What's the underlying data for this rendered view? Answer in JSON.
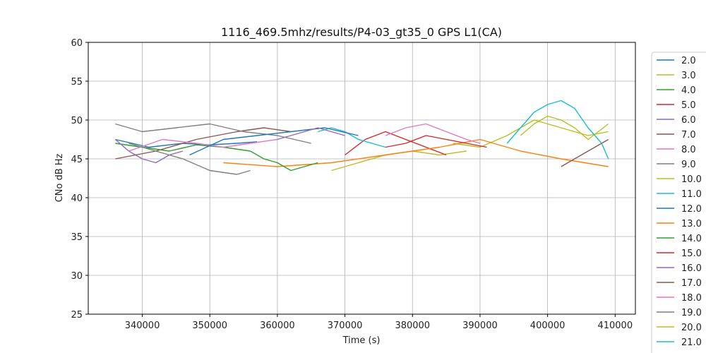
{
  "chart_data": {
    "type": "line",
    "title": "1116_469.5mhz/results/P4-03_gt35_0 GPS L1(CA)",
    "xlabel": "Time (s)",
    "ylabel": "CNo dB Hz",
    "xlim": [
      332000,
      413000
    ],
    "ylim": [
      25,
      60
    ],
    "xticks": [
      340000,
      350000,
      360000,
      370000,
      380000,
      390000,
      400000,
      410000
    ],
    "yticks": [
      25,
      30,
      35,
      40,
      45,
      50,
      55,
      60
    ],
    "grid": true,
    "legend_position": "right",
    "series": [
      {
        "name": "2.0",
        "color": "#1f77b4",
        "points": [
          [
            336000,
            47.5
          ],
          [
            341000,
            46.5
          ],
          [
            346000,
            47.0
          ],
          [
            350000,
            46.8
          ],
          [
            354000,
            47.0
          ],
          [
            357000,
            47.2
          ]
        ]
      },
      {
        "name": "3.0",
        "color": "#bcbd22",
        "points": [
          [
            368000,
            43.5
          ],
          [
            372000,
            44.5
          ],
          [
            376000,
            45.5
          ],
          [
            380000,
            46.0
          ],
          [
            384000,
            45.5
          ],
          [
            388000,
            46.0
          ]
        ]
      },
      {
        "name": "4.0",
        "color": "#2ca02c",
        "points": [
          [
            336000,
            47.0
          ],
          [
            340000,
            46.5
          ],
          [
            344000,
            46.0
          ],
          [
            348000,
            46.8
          ],
          [
            352000,
            46.5
          ],
          [
            356000,
            46.0
          ]
        ]
      },
      {
        "name": "5.0",
        "color": "#d62728",
        "points": [
          [
            370000,
            45.5
          ],
          [
            373000,
            47.5
          ],
          [
            376000,
            48.5
          ],
          [
            379000,
            47.5
          ],
          [
            382000,
            46.5
          ],
          [
            385000,
            45.5
          ]
        ]
      },
      {
        "name": "6.0",
        "color": "#9467bd",
        "points": [
          [
            336000,
            47.5
          ],
          [
            338000,
            46.0
          ],
          [
            340000,
            45.0
          ],
          [
            342000,
            44.5
          ],
          [
            344000,
            45.5
          ],
          [
            346000,
            46.0
          ]
        ]
      },
      {
        "name": "7.0",
        "color": "#8c564b",
        "points": [
          [
            336000,
            45.0
          ],
          [
            342000,
            46.0
          ],
          [
            348000,
            47.5
          ],
          [
            354000,
            48.5
          ],
          [
            358000,
            49.0
          ],
          [
            362000,
            48.5
          ]
        ]
      },
      {
        "name": "8.0",
        "color": "#e377c2",
        "points": [
          [
            338000,
            46.0
          ],
          [
            343000,
            47.5
          ],
          [
            348000,
            47.0
          ],
          [
            352000,
            46.5
          ],
          [
            356000,
            47.0
          ],
          [
            360000,
            47.5
          ]
        ]
      },
      {
        "name": "9.0",
        "color": "#7f7f7f",
        "points": [
          [
            336000,
            49.5
          ],
          [
            340000,
            48.5
          ],
          [
            345000,
            49.0
          ],
          [
            350000,
            49.5
          ],
          [
            355000,
            48.5
          ],
          [
            360000,
            48.0
          ],
          [
            365000,
            47.0
          ]
        ]
      },
      {
        "name": "10.0",
        "color": "#bcbd22",
        "points": [
          [
            386000,
            47.0
          ],
          [
            390000,
            46.5
          ],
          [
            394000,
            48.0
          ],
          [
            398000,
            50.0
          ],
          [
            402000,
            49.0
          ],
          [
            406000,
            48.0
          ],
          [
            409000,
            48.5
          ]
        ]
      },
      {
        "name": "11.0",
        "color": "#17becf",
        "points": [
          [
            366000,
            48.5
          ],
          [
            368000,
            49.0
          ],
          [
            370000,
            48.5
          ],
          [
            372000,
            47.5
          ],
          [
            374000,
            47.0
          ],
          [
            376000,
            46.5
          ]
        ]
      },
      {
        "name": "12.0",
        "color": "#1f77b4",
        "points": [
          [
            347000,
            45.5
          ],
          [
            352000,
            47.5
          ],
          [
            357000,
            48.0
          ],
          [
            362000,
            48.5
          ],
          [
            367000,
            49.0
          ],
          [
            372000,
            48.0
          ]
        ]
      },
      {
        "name": "13.0",
        "color": "#ff7f0e",
        "points": [
          [
            352000,
            44.5
          ],
          [
            360000,
            44.0
          ],
          [
            368000,
            44.5
          ],
          [
            376000,
            45.5
          ],
          [
            384000,
            46.5
          ],
          [
            390000,
            47.5
          ],
          [
            396000,
            46.0
          ],
          [
            402000,
            45.0
          ],
          [
            409000,
            44.0
          ]
        ]
      },
      {
        "name": "14.0",
        "color": "#2ca02c",
        "points": [
          [
            356000,
            46.0
          ],
          [
            358000,
            45.0
          ],
          [
            360000,
            44.5
          ],
          [
            362000,
            43.5
          ],
          [
            364000,
            44.0
          ],
          [
            366000,
            44.5
          ]
        ]
      },
      {
        "name": "15.0",
        "color": "#d62728",
        "points": [
          [
            376000,
            46.5
          ],
          [
            379000,
            47.0
          ],
          [
            382000,
            48.0
          ],
          [
            385000,
            47.5
          ],
          [
            388000,
            47.0
          ],
          [
            391000,
            46.5
          ]
        ]
      },
      {
        "name": "16.0",
        "color": "#9467bd",
        "points": [
          [
            360000,
            47.5
          ],
          [
            362000,
            48.0
          ],
          [
            364000,
            48.5
          ],
          [
            366000,
            49.0
          ],
          [
            368000,
            48.5
          ],
          [
            370000,
            48.0
          ]
        ]
      },
      {
        "name": "17.0",
        "color": "#8c564b",
        "points": [
          [
            402000,
            44.0
          ],
          [
            404000,
            45.0
          ],
          [
            406000,
            46.0
          ],
          [
            408000,
            47.0
          ],
          [
            409000,
            47.5
          ]
        ]
      },
      {
        "name": "18.0",
        "color": "#e377c2",
        "points": [
          [
            376000,
            48.0
          ],
          [
            379000,
            49.0
          ],
          [
            382000,
            49.5
          ],
          [
            385000,
            48.5
          ],
          [
            388000,
            47.5
          ],
          [
            390000,
            47.0
          ]
        ]
      },
      {
        "name": "19.0",
        "color": "#7f7f7f",
        "points": [
          [
            338000,
            47.0
          ],
          [
            342000,
            46.0
          ],
          [
            346000,
            45.0
          ],
          [
            350000,
            43.5
          ],
          [
            354000,
            43.0
          ],
          [
            356000,
            43.5
          ]
        ]
      },
      {
        "name": "20.0",
        "color": "#bcbd22",
        "points": [
          [
            396000,
            48.0
          ],
          [
            398000,
            49.5
          ],
          [
            400000,
            50.5
          ],
          [
            402000,
            50.0
          ],
          [
            404000,
            49.0
          ],
          [
            406000,
            47.5
          ],
          [
            409000,
            49.5
          ]
        ]
      },
      {
        "name": "21.0",
        "color": "#17becf",
        "points": [
          [
            394000,
            47.0
          ],
          [
            396000,
            49.0
          ],
          [
            398000,
            51.0
          ],
          [
            400000,
            52.0
          ],
          [
            402000,
            52.5
          ],
          [
            404000,
            51.5
          ],
          [
            406000,
            49.0
          ],
          [
            408000,
            47.0
          ],
          [
            409000,
            45.0
          ]
        ]
      }
    ]
  }
}
